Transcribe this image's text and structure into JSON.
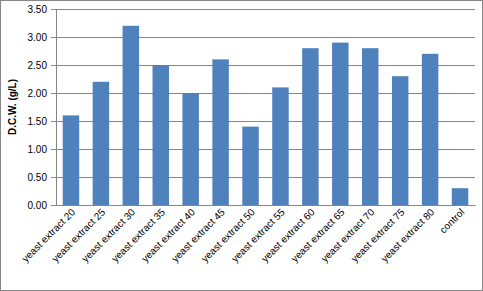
{
  "chart_data": {
    "type": "bar",
    "y_label": "D.C.W. (g/L)",
    "categories": [
      "yeast extract 20",
      "yeast extract 25",
      "yeast extract 30",
      "yeast extract 35",
      "yeast extract 40",
      "yeast extract 45",
      "yeast extract 50",
      "yeast extract 55",
      "yeast extract 60",
      "yeast extract 65",
      "yeast extract 70",
      "yeast extract 75",
      "yeast extract 80",
      "control"
    ],
    "values": [
      1.6,
      2.2,
      3.2,
      2.5,
      2.0,
      2.6,
      1.4,
      2.1,
      2.8,
      2.9,
      2.8,
      2.3,
      2.7,
      0.3
    ],
    "color": "#4f81bd",
    "ylim": [
      0,
      3.5
    ],
    "yticks": [
      {
        "value": 0,
        "label": "0.00"
      },
      {
        "value": 0.5,
        "label": "0.50"
      },
      {
        "value": 1,
        "label": "1.00"
      },
      {
        "value": 1.5,
        "label": "1.50"
      },
      {
        "value": 2,
        "label": "2.00"
      },
      {
        "value": 2.5,
        "label": "2.50"
      },
      {
        "value": 3,
        "label": "3.00"
      },
      {
        "value": 3.5,
        "label": "3.50"
      }
    ],
    "grid": true
  }
}
